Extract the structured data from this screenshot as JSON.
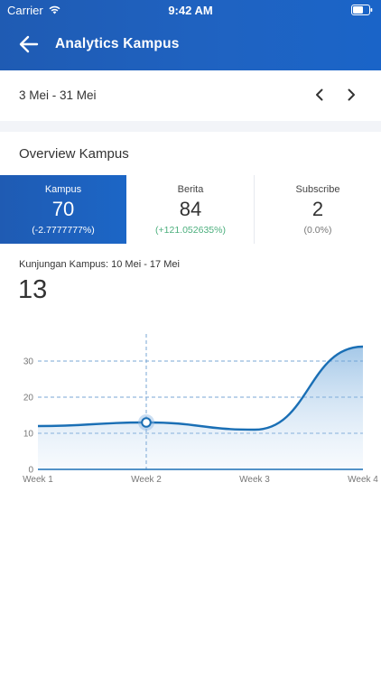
{
  "status": {
    "carrier": "Carrier",
    "time": "9:42 AM"
  },
  "header": {
    "title": "Analytics Kampus"
  },
  "date_range": {
    "label": "3 Mei - 31 Mei"
  },
  "overview": {
    "title": "Overview Kampus",
    "stats": [
      {
        "label": "Kampus",
        "value": "70",
        "change": "(-2.7777777%)"
      },
      {
        "label": "Berita",
        "value": "84",
        "change": "(+121.052635%)"
      },
      {
        "label": "Subscribe",
        "value": "2",
        "change": "(0.0%)"
      }
    ]
  },
  "visits": {
    "label": "Kunjungan Kampus: 10 Mei - 17 Mei",
    "value": "13"
  },
  "colors": {
    "primary": "#1f5bb3",
    "positive": "#4caf7d",
    "line": "#1a6fb5",
    "grid": "#7aa7d6"
  },
  "chart_data": {
    "type": "area",
    "categories": [
      "Week 1",
      "Week 2",
      "Week 3",
      "Week 4"
    ],
    "series": [
      {
        "values": [
          12,
          13,
          11,
          34
        ]
      }
    ],
    "y_ticks": [
      "0",
      "10",
      "20",
      "30"
    ],
    "ylim": [
      0,
      34
    ],
    "highlighted": {
      "category": "Week 2",
      "value": 13
    },
    "grid": true
  }
}
